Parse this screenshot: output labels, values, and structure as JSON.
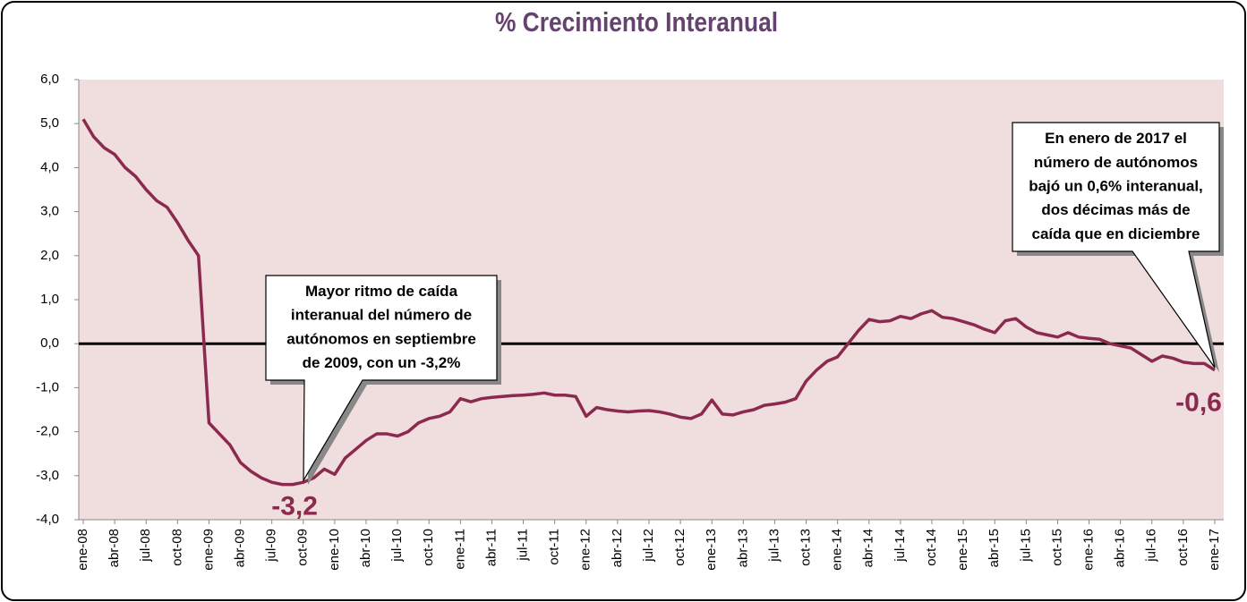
{
  "chart_data": {
    "type": "line",
    "title": "% Crecimiento Interanual",
    "color": "#8b2a4e",
    "plot_background": "#f0dede",
    "categories": [
      "ene-08",
      null,
      null,
      "abr-08",
      null,
      null,
      "jul-08",
      null,
      null,
      "oct-08",
      null,
      null,
      "ene-09",
      null,
      null,
      "abr-09",
      null,
      null,
      "jul-09",
      null,
      null,
      "oct-09",
      null,
      null,
      "ene-10",
      null,
      null,
      "abr-10",
      null,
      null,
      "jul-10",
      null,
      null,
      "oct-10",
      null,
      null,
      "ene-11",
      null,
      null,
      "abr-11",
      null,
      null,
      "jul-11",
      null,
      null,
      "oct-11",
      null,
      null,
      "ene-12",
      null,
      null,
      "abr-12",
      null,
      null,
      "jul-12",
      null,
      null,
      "oct-12",
      null,
      null,
      "ene-13",
      null,
      null,
      "abr-13",
      null,
      null,
      "jul-13",
      null,
      null,
      "oct-13",
      null,
      null,
      "ene-14",
      null,
      null,
      "abr-14",
      null,
      null,
      "jul-14",
      null,
      null,
      "oct-14",
      null,
      null,
      "ene-15",
      null,
      null,
      "abr-15",
      null,
      null,
      "jul-15",
      null,
      null,
      "oct-15",
      null,
      null,
      "ene-16",
      null,
      null,
      "abr-16",
      null,
      null,
      "jul-16",
      null,
      null,
      "oct-16",
      null,
      null,
      "ene-17"
    ],
    "values": [
      5.1,
      4.7,
      4.45,
      4.3,
      4.0,
      3.8,
      3.5,
      3.25,
      3.1,
      2.75,
      2.35,
      2.0,
      -1.8,
      -2.05,
      -2.3,
      -2.7,
      -2.9,
      -3.05,
      -3.15,
      -3.2,
      -3.2,
      -3.15,
      -3.05,
      -2.85,
      -2.97,
      -2.6,
      -2.4,
      -2.2,
      -2.05,
      -2.05,
      -2.1,
      -2.0,
      -1.8,
      -1.7,
      -1.65,
      -1.55,
      -1.25,
      -1.32,
      -1.25,
      -1.22,
      -1.2,
      -1.18,
      -1.17,
      -1.15,
      -1.12,
      -1.17,
      -1.17,
      -1.2,
      -1.65,
      -1.45,
      -1.5,
      -1.53,
      -1.55,
      -1.53,
      -1.52,
      -1.55,
      -1.6,
      -1.67,
      -1.7,
      -1.6,
      -1.28,
      -1.6,
      -1.62,
      -1.55,
      -1.5,
      -1.4,
      -1.37,
      -1.33,
      -1.25,
      -0.85,
      -0.6,
      -0.4,
      -0.3,
      0.0,
      0.3,
      0.55,
      0.5,
      0.52,
      0.62,
      0.57,
      0.68,
      0.75,
      0.6,
      0.57,
      0.5,
      0.43,
      0.33,
      0.25,
      0.52,
      0.57,
      0.38,
      0.25,
      0.2,
      0.15,
      0.25,
      0.15,
      0.12,
      0.1,
      0.0,
      -0.05,
      -0.1,
      -0.25,
      -0.4,
      -0.28,
      -0.33,
      -0.42,
      -0.45,
      -0.45,
      -0.6
    ],
    "value_labels": [
      null,
      null,
      null,
      null,
      null,
      null,
      null,
      null,
      null,
      null,
      null,
      null,
      null,
      null,
      null,
      null,
      null,
      null,
      null,
      null,
      "-3,2",
      null,
      null,
      null,
      null,
      null,
      null,
      null,
      null,
      null,
      null,
      null,
      null,
      null,
      null,
      null,
      null,
      null,
      null,
      null,
      null,
      null,
      null,
      null,
      null,
      null,
      null,
      null,
      null,
      null,
      null,
      null,
      null,
      null,
      null,
      null,
      null,
      null,
      null,
      null,
      null,
      null,
      null,
      null,
      null,
      null,
      null,
      null,
      null,
      null,
      null,
      null,
      null,
      null,
      null,
      null,
      null,
      null,
      null,
      null,
      null,
      null,
      null,
      null,
      null,
      null,
      null,
      null,
      null,
      null,
      null,
      null,
      null,
      null,
      null,
      null,
      null,
      null,
      null,
      null,
      null,
      null,
      null,
      null,
      null,
      null,
      null,
      null,
      "-0,6"
    ],
    "ylim": [
      -4,
      6
    ],
    "yticks": [
      {
        "value": -4,
        "label": "-4,0"
      },
      {
        "value": -3,
        "label": "-3,0"
      },
      {
        "value": -2,
        "label": "-2,0"
      },
      {
        "value": -1,
        "label": "-1,0"
      },
      {
        "value": 0,
        "label": "0,0"
      },
      {
        "value": 1,
        "label": "1,0"
      },
      {
        "value": 2,
        "label": "2,0"
      },
      {
        "value": 3,
        "label": "3,0"
      },
      {
        "value": 4,
        "label": "4,0"
      },
      {
        "value": 5,
        "label": "5,0"
      },
      {
        "value": 6,
        "label": "6,0"
      }
    ],
    "annotations": [
      {
        "lines": [
          "Mayor ritmo de caída",
          "interanual del número de",
          "autónomos en septiembre",
          "de 2009,  con un -3,2%"
        ]
      },
      {
        "lines": [
          "En enero de 2017 el",
          "número de autónomos",
          "bajó un 0,6% interanual,",
          "dos décimas más de",
          "caída que en diciembre"
        ]
      }
    ]
  }
}
